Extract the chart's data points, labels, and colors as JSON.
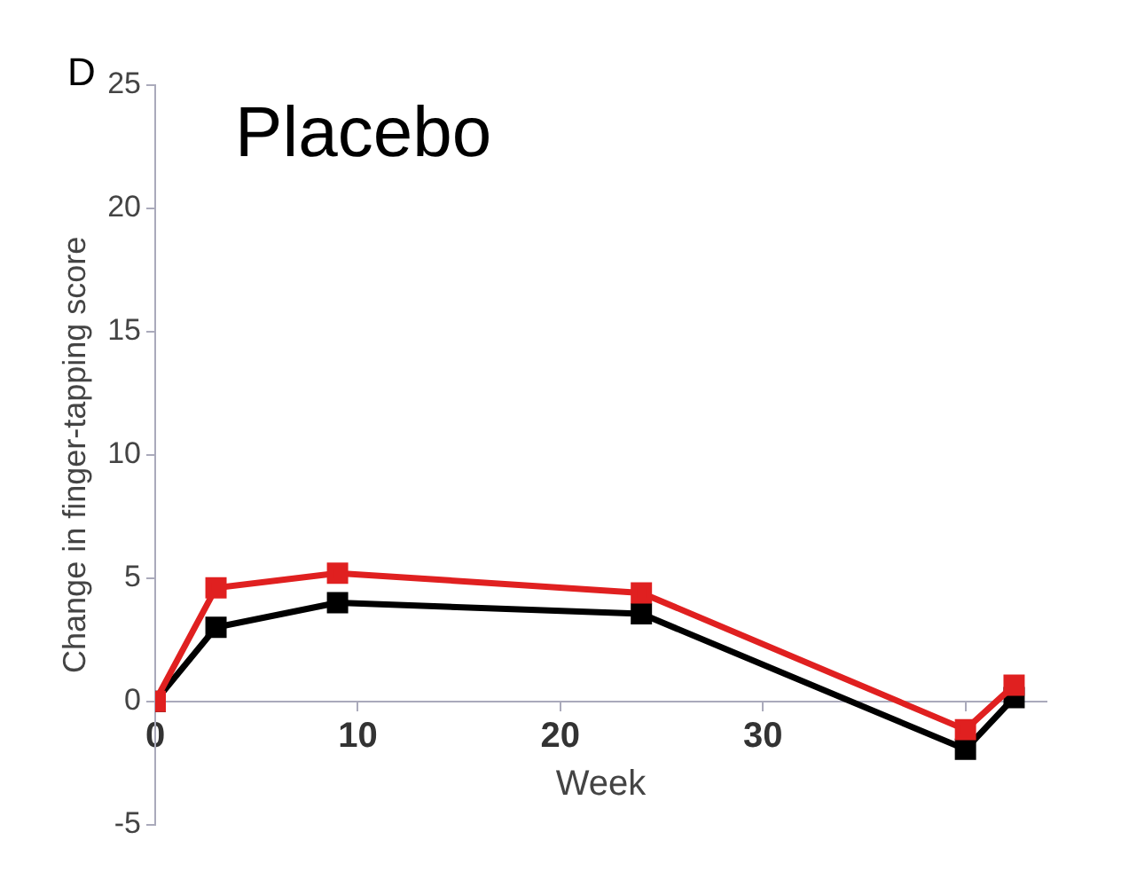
{
  "chart_data": {
    "type": "line",
    "title": "Placebo",
    "annotations": [
      "D"
    ],
    "xlabel": "Week",
    "ylabel": "Change in finger-tapping score",
    "xlim": [
      0,
      44
    ],
    "xticks": [
      0,
      10,
      20,
      30,
      {
        "value": 40,
        "label": null
      }
    ],
    "ylim": [
      -5,
      25
    ],
    "yticks": [
      -5,
      0,
      5,
      10,
      15,
      20,
      25
    ],
    "grid": false,
    "legend": false,
    "marker": "square",
    "line_style": "solid",
    "series": [
      {
        "color": "#e02020",
        "x": [
          0,
          3,
          9,
          24,
          40,
          42.4
        ],
        "values": [
          0,
          4.6,
          5.2,
          4.4,
          -1.15,
          0.65
        ]
      },
      {
        "color": "#000000",
        "x": [
          0,
          3,
          9,
          24,
          40,
          42.4
        ],
        "values": [
          0,
          3.0,
          4.0,
          3.55,
          -1.95,
          0.15
        ]
      }
    ]
  }
}
